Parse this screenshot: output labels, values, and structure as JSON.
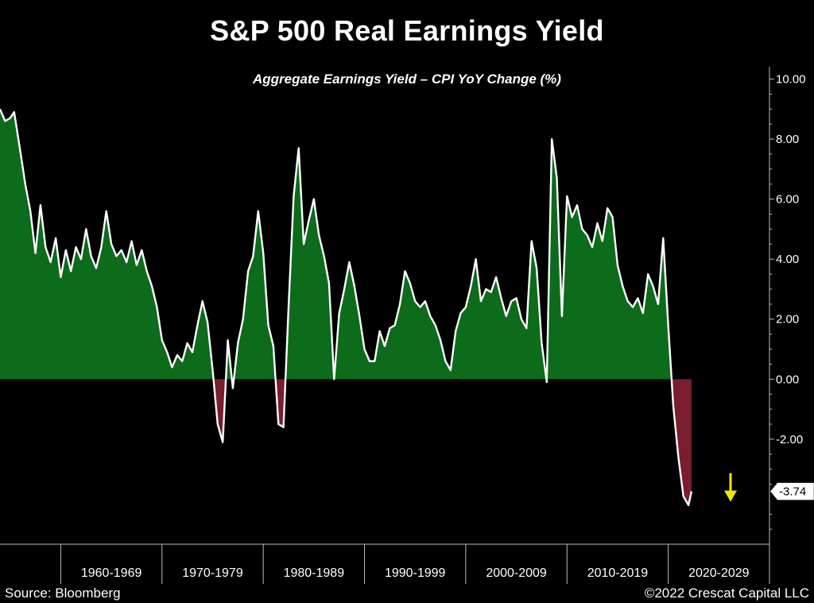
{
  "title": "S&P 500 Real Earnings Yield",
  "subtitle": "Aggregate Earnings Yield – CPI YoY Change (%)",
  "source": "Source: Bloomberg",
  "copyright": "©2022 Crescat Capital LLC",
  "colors": {
    "positive_fill": "#0d6b1c",
    "negative_fill": "#7a1d2e",
    "line": "#ffffff",
    "arrow": "#f2e600",
    "axis": "#bbbbbb"
  },
  "chart_data": {
    "type": "area",
    "title": "S&P 500 Real Earnings Yield",
    "subtitle": "Aggregate Earnings Yield – CPI YoY Change (%)",
    "ylim": [
      -5.5,
      10.2
    ],
    "xlim": [
      1954.0,
      2030.0
    ],
    "yticks": [
      10,
      8,
      6,
      4,
      2,
      0,
      -2
    ],
    "ytick_labels": [
      "10.00",
      "8.00",
      "6.00",
      "4.00",
      "2.00",
      "0.00",
      "-2.00"
    ],
    "decade_labels": [
      "1960-1969",
      "1970-1979",
      "1980-1989",
      "1990-1999",
      "2000-2009",
      "2010-2019",
      "2020-2029"
    ],
    "decade_centers": [
      1965,
      1975,
      1985,
      1995,
      2005,
      2015,
      2025
    ],
    "decade_bounds": [
      1960,
      1970,
      1980,
      1990,
      2000,
      2010,
      2020,
      2030
    ],
    "last_value_label": "-3.74",
    "last_value": -3.74,
    "grid": false,
    "legend": "none",
    "series": [
      {
        "x": [
          1954.0,
          1954.5,
          1955.0,
          1955.4,
          1956.0,
          1956.5,
          1957.0,
          1957.5,
          1958.0,
          1958.5,
          1959.0,
          1959.5,
          1960.0,
          1960.5,
          1961.0,
          1961.5,
          1962.0,
          1962.5,
          1963.0,
          1963.5,
          1964.0,
          1964.5,
          1965.0,
          1965.5,
          1966.0,
          1966.5,
          1967.0,
          1967.5,
          1968.0,
          1968.5,
          1969.0,
          1969.5,
          1970.0,
          1970.5,
          1971.0,
          1971.5,
          1972.0,
          1972.5,
          1973.0,
          1973.5,
          1974.0,
          1974.5,
          1975.0,
          1975.5,
          1976.0,
          1976.5,
          1977.0,
          1977.5,
          1978.0,
          1978.5,
          1979.0,
          1979.5,
          1980.0,
          1980.5,
          1981.0,
          1981.5,
          1982.0,
          1982.5,
          1983.0,
          1983.5,
          1984.0,
          1984.5,
          1985.0,
          1985.5,
          1986.0,
          1986.5,
          1987.0,
          1987.5,
          1988.0,
          1988.5,
          1989.0,
          1989.5,
          1990.0,
          1990.5,
          1991.0,
          1991.5,
          1992.0,
          1992.5,
          1993.0,
          1993.5,
          1994.0,
          1994.5,
          1995.0,
          1995.5,
          1996.0,
          1996.5,
          1997.0,
          1997.5,
          1998.0,
          1998.5,
          1999.0,
          1999.5,
          2000.0,
          2000.5,
          2001.0,
          2001.5,
          2002.0,
          2002.5,
          2003.0,
          2003.5,
          2004.0,
          2004.5,
          2005.0,
          2005.5,
          2006.0,
          2006.5,
          2007.0,
          2007.5,
          2008.0,
          2008.5,
          2009.0,
          2009.5,
          2010.0,
          2010.5,
          2011.0,
          2011.5,
          2012.0,
          2012.5,
          2013.0,
          2013.5,
          2014.0,
          2014.5,
          2015.0,
          2015.5,
          2016.0,
          2016.5,
          2017.0,
          2017.5,
          2018.0,
          2018.5,
          2019.0,
          2019.5,
          2020.0,
          2020.5,
          2021.0,
          2021.5,
          2022.0,
          2022.3
        ],
        "values": [
          9.0,
          8.6,
          8.7,
          8.9,
          7.6,
          6.5,
          5.6,
          4.2,
          5.8,
          4.4,
          3.9,
          4.7,
          3.4,
          4.3,
          3.6,
          4.4,
          4.0,
          5.0,
          4.1,
          3.7,
          4.4,
          5.6,
          4.5,
          4.1,
          4.3,
          3.9,
          4.6,
          3.8,
          4.3,
          3.6,
          3.1,
          2.4,
          1.3,
          0.9,
          0.4,
          0.8,
          0.6,
          1.2,
          0.9,
          1.8,
          2.6,
          1.9,
          0.3,
          -1.5,
          -2.1,
          1.3,
          -0.3,
          1.2,
          2.0,
          3.6,
          4.1,
          5.6,
          4.2,
          1.8,
          1.1,
          -1.5,
          -1.6,
          2.4,
          6.1,
          7.7,
          4.5,
          5.3,
          6.0,
          4.8,
          4.1,
          3.2,
          0.0,
          2.2,
          3.0,
          3.9,
          3.1,
          2.1,
          1.0,
          0.6,
          0.6,
          1.6,
          1.1,
          1.7,
          1.8,
          2.5,
          3.6,
          3.2,
          2.6,
          2.4,
          2.6,
          2.1,
          1.8,
          1.3,
          0.6,
          0.3,
          1.6,
          2.2,
          2.4,
          3.1,
          4.0,
          2.6,
          3.0,
          2.9,
          3.4,
          2.7,
          2.1,
          2.6,
          2.7,
          2.0,
          1.7,
          4.6,
          3.7,
          1.2,
          -0.1,
          8.0,
          6.7,
          2.1,
          6.1,
          5.4,
          5.8,
          5.0,
          4.8,
          4.4,
          5.2,
          4.6,
          5.7,
          5.4,
          3.8,
          3.1,
          2.6,
          2.4,
          2.7,
          2.2,
          3.5,
          3.1,
          2.5,
          4.7,
          1.8,
          -0.9,
          -2.6,
          -3.9,
          -4.2,
          -3.74
        ]
      }
    ]
  }
}
